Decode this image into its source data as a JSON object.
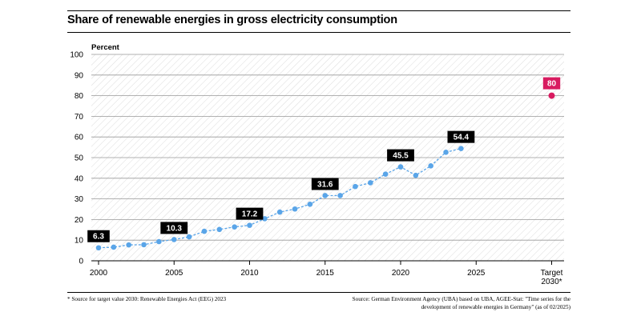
{
  "title": "Share of renewable energies in gross electricity consumption",
  "footnote": "* Source for target value 2030: Renewable Energies Act (EEG) 2023",
  "source": {
    "line1": "Source: German Environment Agency (UBA) based on UBA, AGEE-Stat: \"Time series for the",
    "line2": "development of renewable energies in Germany\" (as of 02/2025)"
  },
  "colors": {
    "series": "#5aa5e8",
    "target": "#d81b60",
    "label_bg": "#000000",
    "grid": "#999999"
  },
  "chart_data": {
    "type": "line",
    "title": "Share of renewable energies in gross electricity consumption",
    "ylabel": "Percent",
    "xlabel": "",
    "ylim": [
      0,
      100
    ],
    "yticks": [
      "0",
      "10",
      "20",
      "30",
      "40",
      "50",
      "60",
      "70",
      "80",
      "90",
      "100"
    ],
    "xticks": [
      "2000",
      "2005",
      "2010",
      "2015",
      "2020",
      "2025"
    ],
    "target_tick": [
      "Target",
      "2030*"
    ],
    "grid": true,
    "series": [
      {
        "name": "Share of renewable energies",
        "x": [
          2000,
          2001,
          2002,
          2003,
          2004,
          2005,
          2006,
          2007,
          2008,
          2009,
          2010,
          2011,
          2012,
          2013,
          2014,
          2015,
          2016,
          2017,
          2018,
          2019,
          2020,
          2021,
          2022,
          2023,
          2024
        ],
        "values": [
          6.3,
          6.6,
          7.7,
          7.8,
          9.3,
          10.3,
          11.6,
          14.3,
          15.2,
          16.4,
          17.2,
          20.4,
          23.6,
          25.1,
          27.4,
          31.6,
          31.6,
          36.0,
          37.8,
          42.0,
          45.5,
          41.4,
          46.0,
          52.6,
          54.4
        ]
      }
    ],
    "labels": [
      {
        "x": 2000,
        "text": "6.3"
      },
      {
        "x": 2005,
        "text": "10.3"
      },
      {
        "x": 2010,
        "text": "17.2"
      },
      {
        "x": 2015,
        "text": "31.6"
      },
      {
        "x": 2020,
        "text": "45.5"
      },
      {
        "x": 2024,
        "text": "54.4"
      }
    ],
    "target": {
      "year": 2030,
      "value": 80,
      "label": "80"
    }
  }
}
